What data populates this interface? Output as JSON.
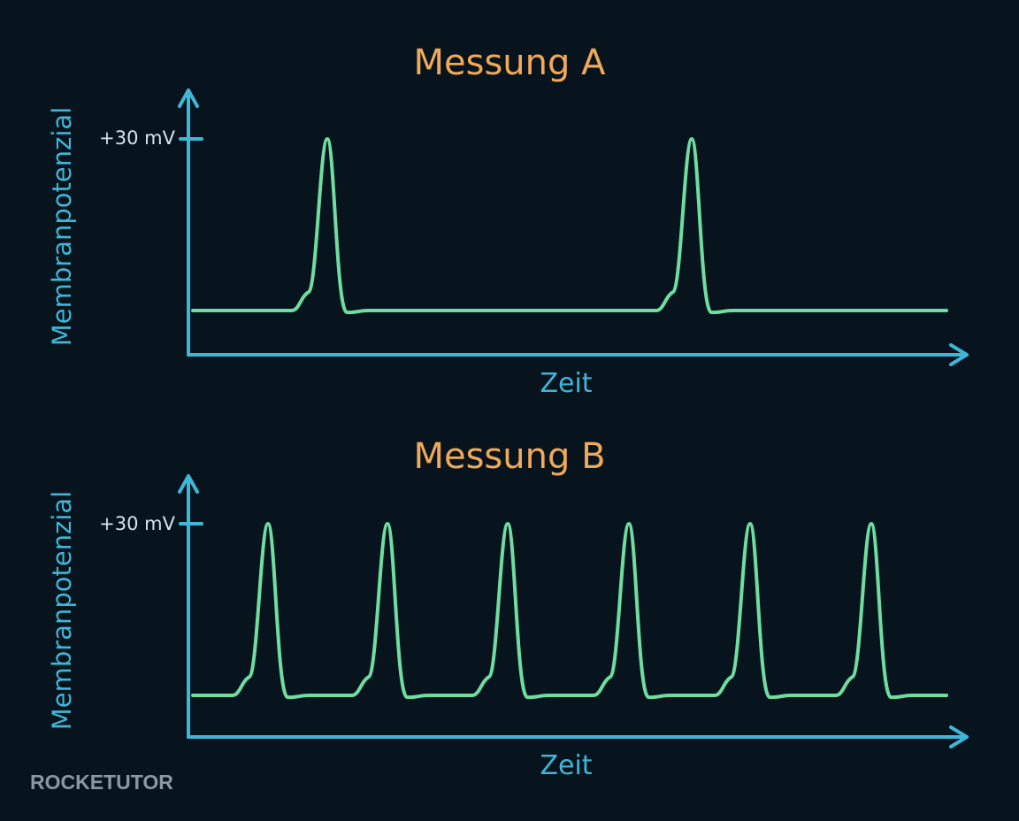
{
  "panels": [
    {
      "title": "Messung A",
      "y_label": "Membranpotenzial",
      "tick_label": "+30 mV",
      "x_label": "Zeit"
    },
    {
      "title": "Messung B",
      "y_label": "Membranpotenzial",
      "tick_label": "+30 mV",
      "x_label": "Zeit"
    }
  ],
  "logo": "ROCKETUTOR"
}
